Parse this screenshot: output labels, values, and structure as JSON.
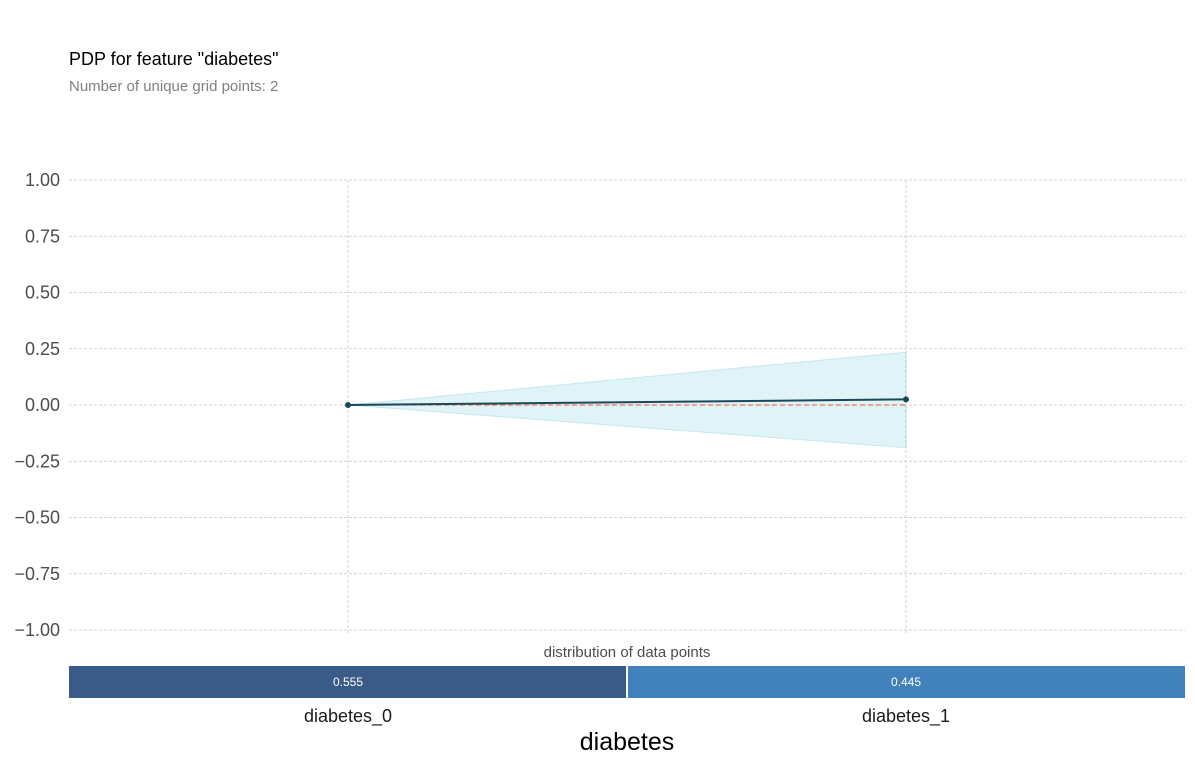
{
  "title": "PDP for feature \"diabetes\"",
  "subtitle": "Number of unique grid points: 2",
  "chart_data": {
    "type": "line",
    "x": [
      "diabetes_0",
      "diabetes_1"
    ],
    "series": [
      {
        "values": [
          0.0,
          0.025
        ],
        "lower": [
          0.0,
          -0.19
        ],
        "upper": [
          0.0,
          0.235
        ]
      }
    ],
    "baseline": 0,
    "ylim": [
      -1.0,
      1.0
    ],
    "yticks": [
      "1.00",
      "0.75",
      "0.50",
      "0.25",
      "0.00",
      "−0.25",
      "−0.50",
      "−0.75",
      "−1.00"
    ],
    "ytick_values": [
      1.0,
      0.75,
      0.5,
      0.25,
      0.0,
      -0.25,
      -0.5,
      -0.75,
      -1.0
    ],
    "xlabel": "diabetes",
    "grid": true,
    "colors": {
      "line": "#1a4a5a",
      "band": "#66c2d7",
      "baseline": "#ec7a5a",
      "grid": "#c8c8c8",
      "bar0": "#3a5a88",
      "bar1": "#4282bc"
    },
    "distribution": {
      "label": "distribution of data points",
      "categories": [
        "diabetes_0",
        "diabetes_1"
      ],
      "values": [
        0.555,
        0.445
      ],
      "labels": [
        "0.555",
        "0.445"
      ]
    }
  }
}
